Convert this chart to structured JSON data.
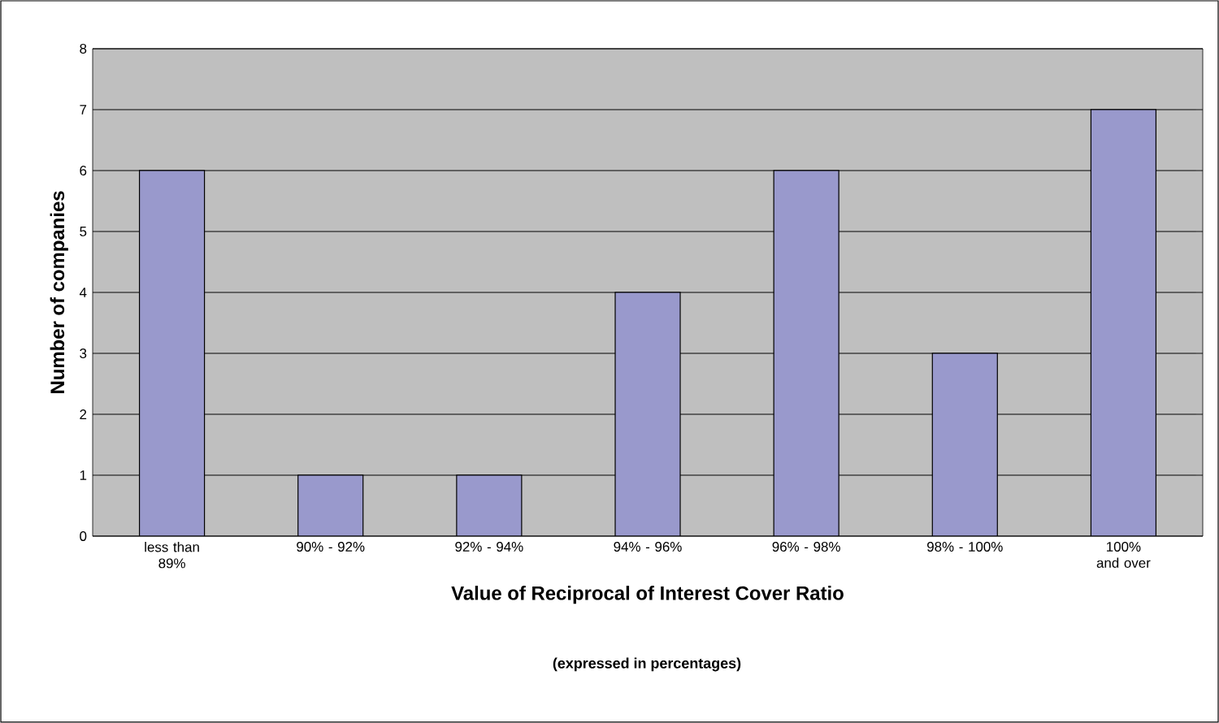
{
  "chart_data": {
    "type": "bar",
    "categories": [
      "less than 89%",
      "90% - 92%",
      "92% - 94%",
      "94% - 96%",
      "96% - 98%",
      "98% - 100%",
      "100% and over"
    ],
    "values": [
      6,
      1,
      1,
      4,
      6,
      3,
      7
    ],
    "color": "#9999cc",
    "xlabel": "Value of Reciprocal of Interest Cover Ratio",
    "ylabel": "Number of companies",
    "annotations": [
      "(expressed in percentages)"
    ],
    "ylim": [
      0,
      8
    ],
    "yticks": [
      0,
      1,
      2,
      3,
      4,
      5,
      6,
      7,
      8
    ],
    "grid": "y"
  }
}
